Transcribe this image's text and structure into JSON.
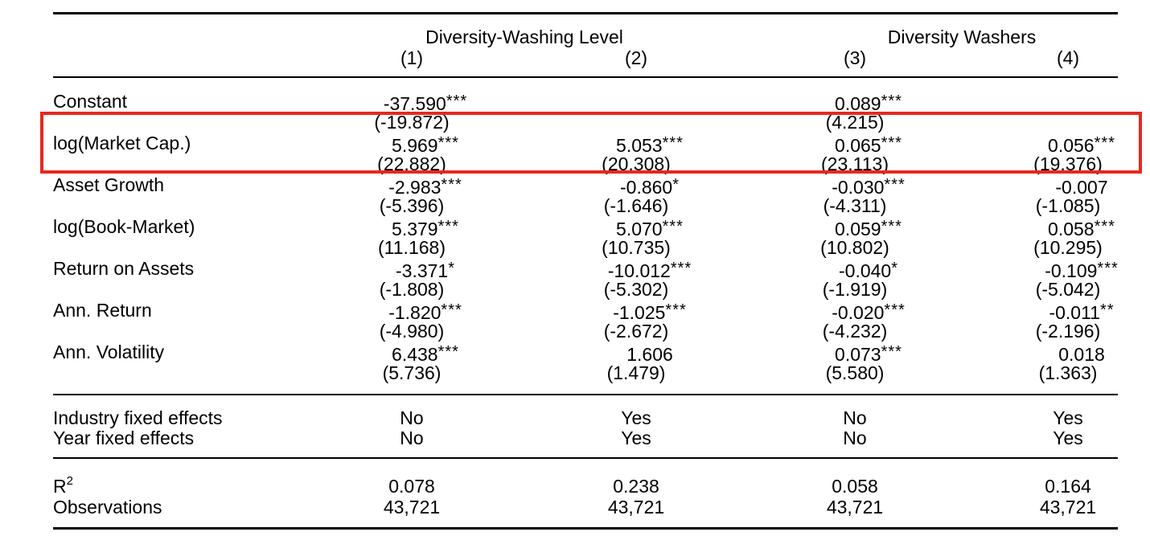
{
  "header": {
    "group1": "Diversity-Washing Level",
    "group2": "Diversity Washers",
    "columns": [
      "(1)",
      "(2)",
      "(3)",
      "(4)"
    ]
  },
  "rows": [
    {
      "label": "Constant",
      "coef": [
        "-37.590",
        "",
        "0.089",
        ""
      ],
      "stars": [
        "***",
        "",
        "***",
        ""
      ],
      "tstat": [
        "(-19.872)",
        "",
        "(4.215)",
        ""
      ]
    },
    {
      "label": "log(Market Cap.)",
      "coef": [
        "5.969",
        "5.053",
        "0.065",
        "0.056"
      ],
      "stars": [
        "***",
        "***",
        "***",
        "***"
      ],
      "tstat": [
        "(22.882)",
        "(20.308)",
        "(23.113)",
        "(19.376)"
      ]
    },
    {
      "label": "Asset Growth",
      "coef": [
        "-2.983",
        "-0.860",
        "-0.030",
        "-0.007"
      ],
      "stars": [
        "***",
        "*",
        "***",
        ""
      ],
      "tstat": [
        "(-5.396)",
        "(-1.646)",
        "(-4.311)",
        "(-1.085)"
      ]
    },
    {
      "label": "log(Book-Market)",
      "coef": [
        "5.379",
        "5.070",
        "0.059",
        "0.058"
      ],
      "stars": [
        "***",
        "***",
        "***",
        "***"
      ],
      "tstat": [
        "(11.168)",
        "(10.735)",
        "(10.802)",
        "(10.295)"
      ]
    },
    {
      "label": "Return on Assets",
      "coef": [
        "-3.371",
        "-10.012",
        "-0.040",
        "-0.109"
      ],
      "stars": [
        "*",
        "***",
        "*",
        "***"
      ],
      "tstat": [
        "(-1.808)",
        "(-5.302)",
        "(-1.919)",
        "(-5.042)"
      ]
    },
    {
      "label": "Ann. Return",
      "coef": [
        "-1.820",
        "-1.025",
        "-0.020",
        "-0.011"
      ],
      "stars": [
        "***",
        "***",
        "***",
        "**"
      ],
      "tstat": [
        "(-4.980)",
        "(-2.672)",
        "(-4.232)",
        "(-2.196)"
      ]
    },
    {
      "label": "Ann. Volatility",
      "coef": [
        "6.438",
        "1.606",
        "0.073",
        "0.018"
      ],
      "stars": [
        "***",
        "",
        "***",
        ""
      ],
      "tstat": [
        "(5.736)",
        "(1.479)",
        "(5.580)",
        "(1.363)"
      ]
    }
  ],
  "fixed_effects": [
    {
      "label": "Industry fixed effects",
      "values": [
        "No",
        "Yes",
        "No",
        "Yes"
      ]
    },
    {
      "label": "Year fixed effects",
      "values": [
        "No",
        "Yes",
        "No",
        "Yes"
      ]
    }
  ],
  "stats": {
    "r2_label": "R",
    "r2_sup": "2",
    "r2_values": [
      "0.078",
      "0.238",
      "0.058",
      "0.164"
    ],
    "obs_label": "Observations",
    "obs_values": [
      "43,721",
      "43,721",
      "43,721",
      "43,721"
    ]
  },
  "highlight_color": "#e8281e"
}
